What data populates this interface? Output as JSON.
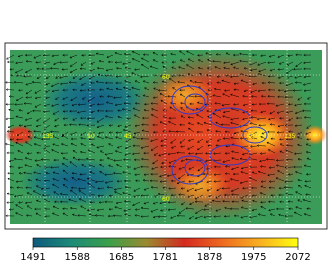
{
  "chart_data": {
    "type": "heatmap",
    "colorbar": {
      "clim": [
        1491,
        2072
      ],
      "ticks": [
        1491,
        1588,
        1685,
        1781,
        1878,
        1975,
        2072
      ],
      "colormap": [
        "#0e5a7c",
        "#1c8a78",
        "#3aa04a",
        "#9a8a30",
        "#d42a20",
        "#ee6a20",
        "#f8b020",
        "#ffff10"
      ]
    },
    "grid_labels": [
      "135",
      "90",
      "45",
      "45",
      "135",
      "60",
      "60"
    ]
  }
}
